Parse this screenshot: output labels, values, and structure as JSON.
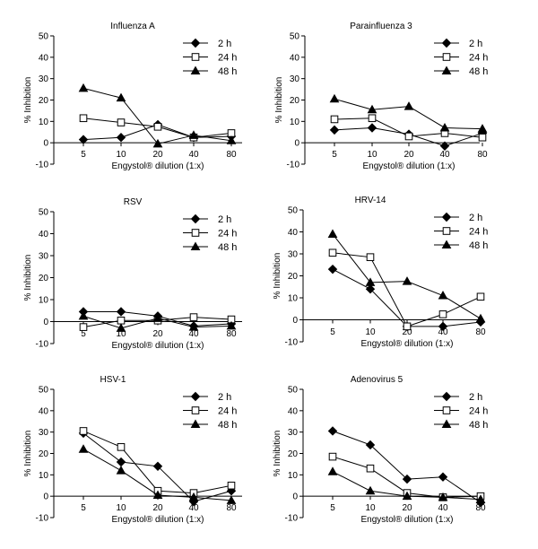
{
  "figure": {
    "ylabel": "% Inhibition",
    "xlabel": "Engystol® dilution (1:x)"
  },
  "chart_data": [
    {
      "type": "line",
      "title": "Influenza A",
      "categories": [
        "5",
        "10",
        "20",
        "40",
        "80"
      ],
      "xlabel": "Engystol® dilution (1:x)",
      "ylabel": "% Inhibition",
      "ylim": [
        -10,
        50
      ],
      "yticks": [
        -10,
        0,
        10,
        20,
        30,
        40,
        50
      ],
      "series": [
        {
          "name": "2 h",
          "marker": "diamond",
          "values": [
            1.5,
            2.5,
            8.5,
            2.5,
            3
          ]
        },
        {
          "name": "24 h",
          "marker": "open-square",
          "values": [
            11.5,
            9.5,
            7.5,
            2.5,
            4.5
          ]
        },
        {
          "name": "48 h",
          "marker": "triangle",
          "values": [
            25.5,
            21,
            -0.5,
            3.5,
            1
          ]
        }
      ]
    },
    {
      "type": "line",
      "title": "Parainfluenza 3",
      "categories": [
        "5",
        "10",
        "20",
        "40",
        "80"
      ],
      "xlabel": "Engystol® dilution (1:x)",
      "ylabel": "% Inhibition",
      "ylim": [
        -10,
        50
      ],
      "yticks": [
        -10,
        0,
        10,
        20,
        30,
        40,
        50
      ],
      "series": [
        {
          "name": "2 h",
          "marker": "diamond",
          "values": [
            6,
            7,
            4,
            -1.5,
            4.5
          ]
        },
        {
          "name": "24 h",
          "marker": "open-square",
          "values": [
            11,
            11.5,
            3,
            4.5,
            2.5
          ]
        },
        {
          "name": "48 h",
          "marker": "triangle",
          "values": [
            20.5,
            15.5,
            17,
            7,
            6.5
          ]
        }
      ]
    },
    {
      "type": "line",
      "title": "RSV",
      "categories": [
        "5",
        "10",
        "20",
        "40",
        "80"
      ],
      "xlabel": "Engystol® dilution (1:x)",
      "ylabel": "% Inhibition",
      "ylim": [
        -10,
        50
      ],
      "yticks": [
        -10,
        0,
        10,
        20,
        30,
        40,
        50
      ],
      "series": [
        {
          "name": "2 h",
          "marker": "diamond",
          "values": [
            4.5,
            4.5,
            2.5,
            -2,
            -1
          ]
        },
        {
          "name": "24 h",
          "marker": "open-square",
          "values": [
            -2.5,
            0.5,
            0.5,
            2,
            1
          ]
        },
        {
          "name": "48 h",
          "marker": "triangle",
          "values": [
            2.5,
            -3,
            1.5,
            -2.5,
            -2
          ]
        }
      ]
    },
    {
      "type": "line",
      "title": "HRV-14",
      "categories": [
        "5",
        "10",
        "20",
        "40",
        "80"
      ],
      "xlabel": "Engystol® dilution (1:x)",
      "ylabel": "% Inhibition",
      "ylim": [
        -10,
        50
      ],
      "yticks": [
        -10,
        0,
        10,
        20,
        30,
        40,
        50
      ],
      "series": [
        {
          "name": "2 h",
          "marker": "diamond",
          "values": [
            23,
            14,
            -3,
            -3,
            -1
          ]
        },
        {
          "name": "24 h",
          "marker": "open-square",
          "values": [
            30.5,
            28.5,
            -3,
            2.5,
            10.5
          ]
        },
        {
          "name": "48 h",
          "marker": "triangle",
          "values": [
            39,
            17,
            17.5,
            11,
            0.5
          ]
        }
      ]
    },
    {
      "type": "line",
      "title": "HSV-1",
      "categories": [
        "5",
        "10",
        "20",
        "40",
        "80"
      ],
      "xlabel": "Engystol® dilution (1:x)",
      "ylabel": "% Inhibition",
      "ylim": [
        -10,
        50
      ],
      "yticks": [
        -10,
        0,
        10,
        20,
        30,
        40,
        50
      ],
      "series": [
        {
          "name": "2 h",
          "marker": "diamond",
          "values": [
            29.5,
            16,
            14,
            -2.5,
            2.5
          ]
        },
        {
          "name": "24 h",
          "marker": "open-square",
          "values": [
            30.5,
            23,
            2.5,
            1.5,
            5
          ]
        },
        {
          "name": "48 h",
          "marker": "triangle",
          "values": [
            22,
            12,
            0.5,
            -0.5,
            -2
          ]
        }
      ]
    },
    {
      "type": "line",
      "title": "Adenovirus 5",
      "categories": [
        "5",
        "10",
        "20",
        "40",
        "80"
      ],
      "xlabel": "Engystol® dilution (1:x)",
      "ylabel": "% Inhibition",
      "ylim": [
        -10,
        50
      ],
      "yticks": [
        -10,
        0,
        10,
        20,
        30,
        40,
        50
      ],
      "series": [
        {
          "name": "2 h",
          "marker": "diamond",
          "values": [
            30.5,
            24,
            8,
            9,
            -3
          ]
        },
        {
          "name": "24 h",
          "marker": "open-square",
          "values": [
            18.5,
            13,
            1.5,
            -0.5,
            0
          ]
        },
        {
          "name": "48 h",
          "marker": "triangle",
          "values": [
            11.5,
            2.5,
            0,
            -0.5,
            -1.5
          ]
        }
      ]
    }
  ]
}
